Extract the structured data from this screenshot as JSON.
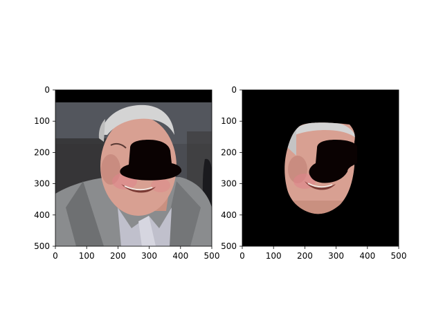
{
  "figure": {
    "panels": [
      {
        "name": "original-image-panel",
        "content": "photo of an elderly man in a grey suit with a black occlusion shape over the upper face",
        "x_ticks": [
          "0",
          "100",
          "200",
          "300",
          "400",
          "500"
        ],
        "y_ticks": [
          "0",
          "100",
          "200",
          "300",
          "400",
          "500"
        ]
      },
      {
        "name": "masked-face-panel",
        "content": "face region only on black background, with black occlusion shape",
        "x_ticks": [
          "0",
          "100",
          "200",
          "300",
          "400",
          "500"
        ],
        "y_ticks": [
          "0",
          "100",
          "200",
          "300",
          "400",
          "500"
        ]
      }
    ],
    "colors": {
      "occlusion": "#0a0202",
      "background": "#000000",
      "suit": "#8a8c8e",
      "skin": "#d8a092",
      "hair": "#d4d4d4",
      "backdrop": "#4a4c52"
    }
  }
}
